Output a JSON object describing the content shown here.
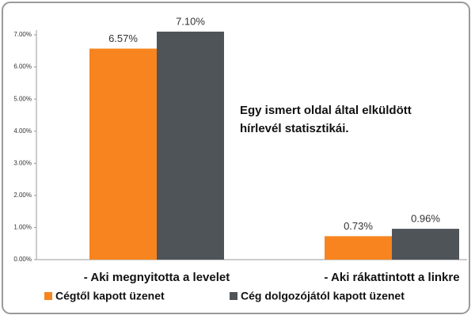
{
  "chart_data": {
    "type": "bar",
    "annotation": [
      "Egy ismert oldal által elküldött",
      "hírlevél statisztikái."
    ],
    "categories": [
      "- Aki megnyitotta a levelet",
      "- Aki rákattintott a linkre"
    ],
    "series": [
      {
        "name": "Cégtől kapott üzenet",
        "color": "#f7841e",
        "values": [
          6.57,
          0.73
        ],
        "value_labels": [
          "6.57%",
          "0.73%"
        ]
      },
      {
        "name": "Cég dolgozójától kapott üzenet",
        "color": "#4f5459",
        "values": [
          7.1,
          0.96
        ],
        "value_labels": [
          "7.10%",
          "0.96%"
        ]
      }
    ],
    "ylim": [
      0,
      7
    ],
    "yticks": [
      {
        "value": 0,
        "label": "0.00%"
      },
      {
        "value": 1,
        "label": "1.00%"
      },
      {
        "value": 2,
        "label": "2.00%"
      },
      {
        "value": 3,
        "label": "3.00%"
      },
      {
        "value": 4,
        "label": "4.00%"
      },
      {
        "value": 5,
        "label": "5.00%"
      },
      {
        "value": 6,
        "label": "6.00%"
      },
      {
        "value": 7,
        "label": "7.00%"
      }
    ],
    "grid": false
  }
}
